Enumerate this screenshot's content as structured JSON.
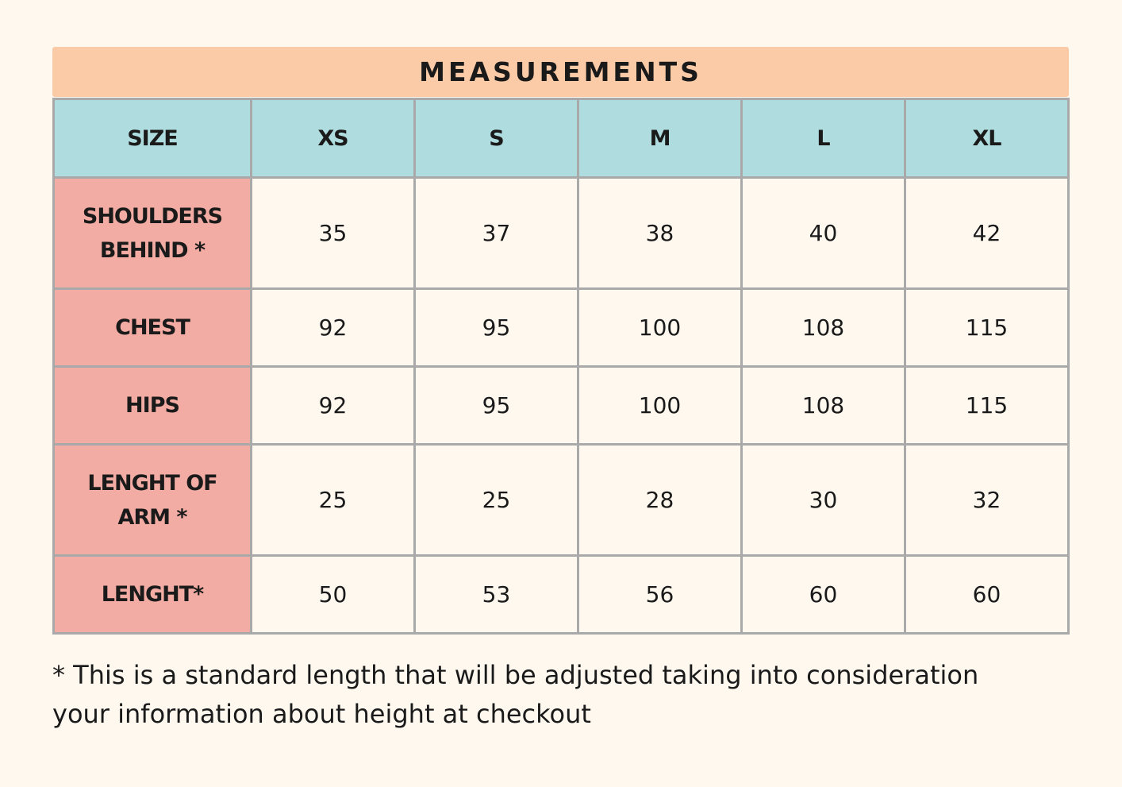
{
  "title": "MEASUREMENTS",
  "header": {
    "label": "SIZE",
    "sizes": [
      "XS",
      "S",
      "M",
      "L",
      "XL"
    ]
  },
  "rows": [
    {
      "label_lines": [
        "SHOULDERS",
        "BEHIND *"
      ],
      "values": [
        "35",
        "37",
        "38",
        "40",
        "42"
      ]
    },
    {
      "label_lines": [
        "CHEST"
      ],
      "values": [
        "92",
        "95",
        "100",
        "108",
        "115"
      ]
    },
    {
      "label_lines": [
        "HIPS"
      ],
      "values": [
        "92",
        "95",
        "100",
        "108",
        "115"
      ]
    },
    {
      "label_lines": [
        "LENGHT OF",
        "ARM *"
      ],
      "values": [
        "25",
        "25",
        "28",
        "30",
        "32"
      ]
    },
    {
      "label_lines": [
        "LENGHT*"
      ],
      "values": [
        "50",
        "53",
        "56",
        "60",
        "60"
      ]
    }
  ],
  "footnote": {
    "line1": "* This is a standard length that will be adjusted taking into consideration",
    "line2": "your information about height at checkout"
  },
  "colors": {
    "background": "#fff8ef",
    "title_bar": "#fbcaa6",
    "header_row": "#aedcdf",
    "label_column": "#f2aca3",
    "grid": "#a9a9a9"
  }
}
